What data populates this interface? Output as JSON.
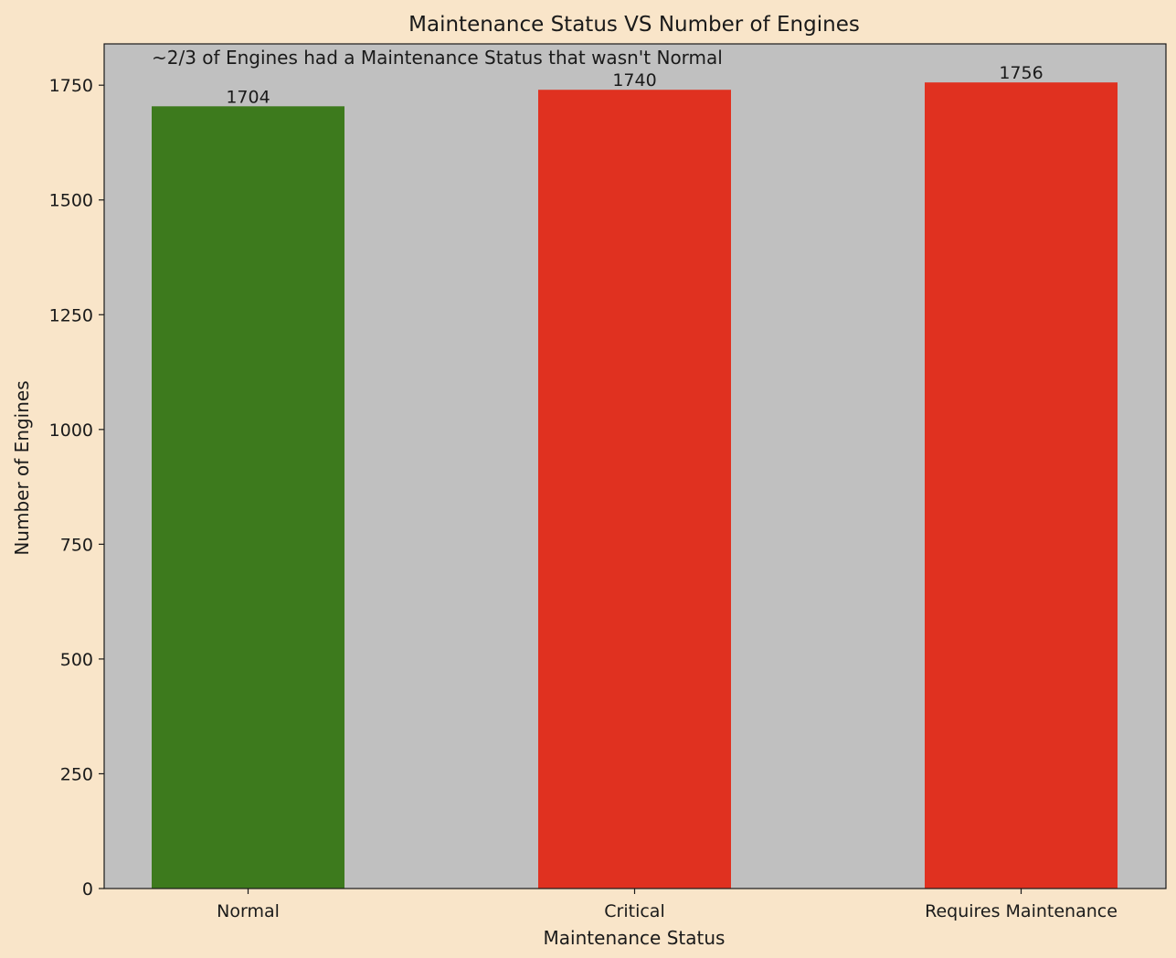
{
  "chart_data": {
    "type": "bar",
    "title": "Maintenance Status VS Number of Engines",
    "annotation": "~2/3 of Engines had a Maintenance Status that wasn't Normal",
    "xlabel": "Maintenance Status",
    "ylabel": "Number of Engines",
    "categories": [
      "Normal",
      "Critical",
      "Requires Maintenance"
    ],
    "values": [
      1704,
      1740,
      1756
    ],
    "bar_colors": [
      "#3d7a1d",
      "#e03120",
      "#e03120"
    ],
    "ylim": [
      0,
      1840
    ],
    "yticks": [
      0,
      250,
      500,
      750,
      1000,
      1250,
      1500,
      1750
    ],
    "grid": false,
    "figure_background": "#f9e5c9",
    "plot_background": "#c0c0c0"
  }
}
